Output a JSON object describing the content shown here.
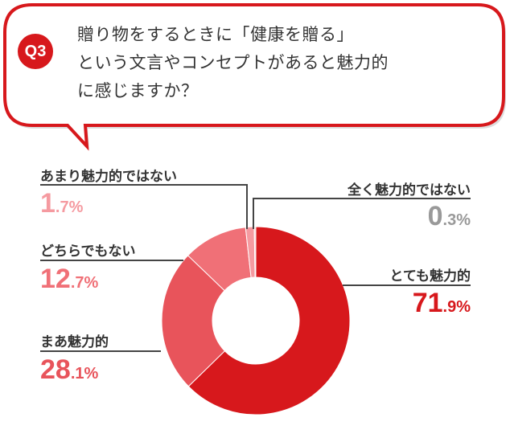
{
  "question": {
    "badge": "Q3",
    "lines": [
      "贈り物をするときに「健康を贈る」",
      "という文言やコンセプトがあると魅力的",
      "に感じますか？"
    ]
  },
  "colors": {
    "accent": "#d7181c"
  },
  "chart_data": {
    "type": "pie",
    "donut": true,
    "categories": [
      "とても魅力的",
      "まあ魅力的",
      "どちらでもない",
      "あまり魅力的ではない",
      "全く魅力的ではない"
    ],
    "values": [
      71.9,
      28.1,
      12.7,
      1.7,
      0.3
    ],
    "unit": "%",
    "colors": [
      "#d7181c",
      "#e8545b",
      "#f07077",
      "#f59aa0",
      "#fbd0d3"
    ],
    "label_colors": [
      "#d7181c",
      "#e8545b",
      "#f07077",
      "#f59aa0",
      "#999999"
    ],
    "value_text": [
      [
        "71",
        ".9%"
      ],
      [
        "28",
        ".1%"
      ],
      [
        "12",
        ".7%"
      ],
      [
        "1",
        ".7%"
      ],
      [
        "0",
        ".3%"
      ]
    ]
  }
}
